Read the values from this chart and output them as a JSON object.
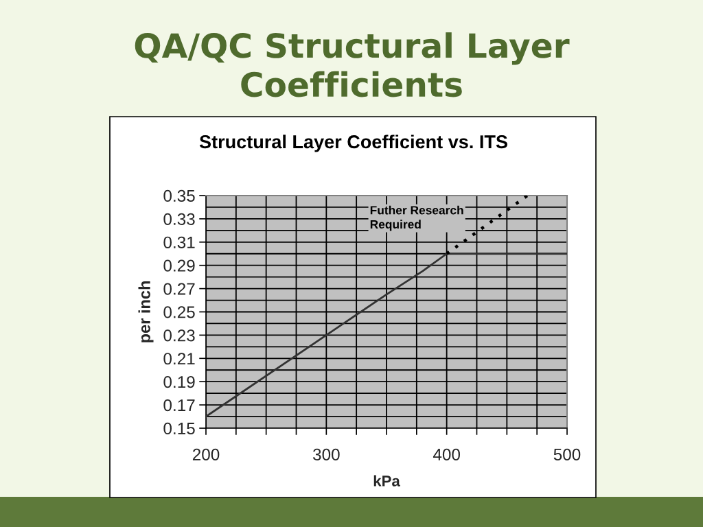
{
  "chart_data": {
    "type": "line",
    "title": "QA/QC Structural Layer Coefficients",
    "subtitle": "Structural Layer Coefficient vs. ITS",
    "xlabel": "kPa",
    "ylabel": "per inch",
    "xlim": [
      200,
      500
    ],
    "ylim": [
      0.15,
      0.35
    ],
    "xticks": [
      200,
      {
        "value": 225,
        "label": null
      },
      {
        "value": 250,
        "label": null
      },
      {
        "value": 275,
        "label": null
      },
      300,
      {
        "value": 325,
        "label": null
      },
      {
        "value": 350,
        "label": null
      },
      {
        "value": 375,
        "label": null
      },
      400,
      {
        "value": 425,
        "label": null
      },
      {
        "value": 450,
        "label": null
      },
      {
        "value": 475,
        "label": null
      },
      500
    ],
    "yticks": [
      0.15,
      {
        "value": 0.16,
        "label": null
      },
      0.17,
      {
        "value": 0.18,
        "label": null
      },
      0.19,
      {
        "value": 0.2,
        "label": null
      },
      0.21,
      {
        "value": 0.22,
        "label": null
      },
      0.23,
      {
        "value": 0.24,
        "label": null
      },
      0.25,
      {
        "value": 0.26,
        "label": null
      },
      0.27,
      {
        "value": 0.28,
        "label": null
      },
      0.29,
      {
        "value": 0.3,
        "label": null
      },
      0.31,
      {
        "value": 0.32,
        "label": null
      },
      0.33,
      {
        "value": 0.34,
        "label": null
      },
      0.35
    ],
    "grid": true,
    "series": [
      {
        "x": [
          200,
          300,
          350,
          380,
          400,
          500
        ],
        "values": [
          0.16,
          0.23,
          0.265,
          0.285,
          0.3,
          0.3
        ],
        "color": "#333333",
        "line_style": "solid"
      },
      {
        "name": "Futher Research Required",
        "x": [
          400,
          467
        ],
        "values": [
          0.3,
          0.35
        ],
        "color": "#000000",
        "line_style": "dotted"
      }
    ]
  }
}
